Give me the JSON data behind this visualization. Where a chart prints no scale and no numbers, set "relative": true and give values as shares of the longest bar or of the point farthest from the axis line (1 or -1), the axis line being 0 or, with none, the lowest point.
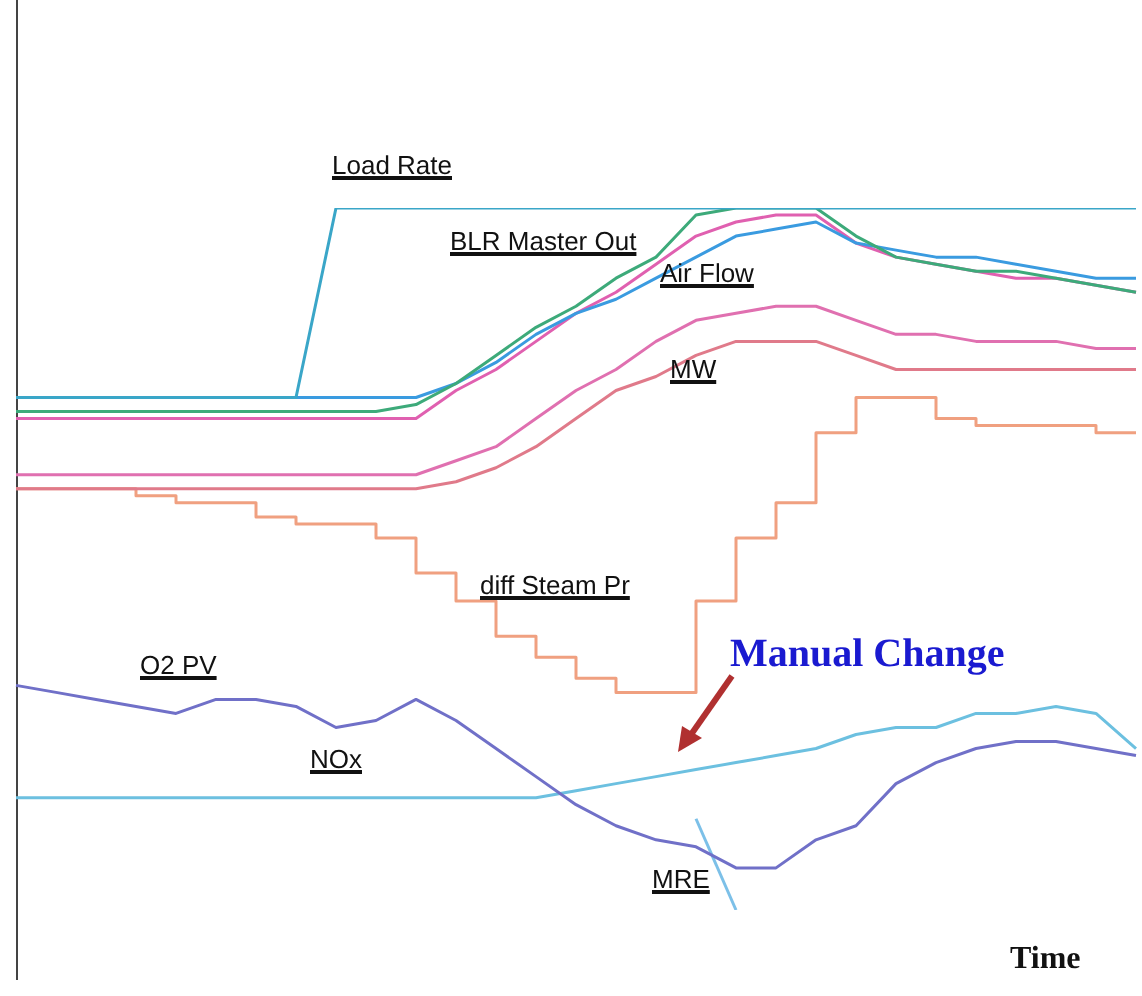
{
  "chart_data": {
    "type": "line",
    "relative": true,
    "xlabel": "Time",
    "annotations": [
      "Manual Change"
    ],
    "categories": [
      null,
      null,
      null,
      null,
      null,
      null,
      null,
      null,
      null,
      null,
      null,
      null,
      null,
      null,
      null,
      null,
      null,
      null,
      null,
      null,
      null,
      null,
      null,
      null,
      null,
      null,
      null,
      null,
      null
    ],
    "series": [
      {
        "name": "Load Rate",
        "color": "#3aa6c8",
        "values": [
          0.73,
          0.73,
          0.73,
          0.73,
          0.73,
          0.73,
          0.73,
          0.73,
          1,
          1,
          1,
          1,
          1,
          1,
          1,
          1,
          1,
          1,
          1,
          1,
          1,
          1,
          1,
          1,
          1,
          1,
          1,
          1,
          1
        ]
      },
      {
        "name": "BLR Master Out",
        "color": "#3daa7a",
        "values": [
          0.71,
          0.71,
          0.71,
          0.71,
          0.71,
          0.71,
          0.71,
          0.71,
          0.71,
          0.71,
          0.72,
          0.75,
          0.79,
          0.83,
          0.86,
          0.9,
          0.93,
          0.99,
          1,
          1,
          1,
          0.96,
          0.93,
          0.92,
          0.91,
          0.91,
          0.9,
          0.89,
          0.88
        ]
      },
      {
        "name": "Air Flow",
        "color": "#3a9be0",
        "values": [
          0.73,
          0.73,
          0.73,
          0.73,
          0.73,
          0.73,
          0.73,
          0.73,
          0.73,
          0.73,
          0.73,
          0.75,
          0.78,
          0.82,
          0.85,
          0.87,
          0.9,
          0.93,
          0.96,
          0.97,
          0.98,
          0.95,
          0.94,
          0.93,
          0.93,
          0.92,
          0.91,
          0.9,
          0.9
        ]
      },
      {
        "color": "#e060b0",
        "values": [
          0.7,
          0.7,
          0.7,
          0.7,
          0.7,
          0.7,
          0.7,
          0.7,
          0.7,
          0.7,
          0.7,
          0.74,
          0.77,
          0.81,
          0.85,
          0.88,
          0.92,
          0.96,
          0.98,
          0.99,
          0.99,
          0.95,
          0.93,
          0.92,
          0.91,
          0.9,
          0.9,
          0.89,
          0.88
        ]
      },
      {
        "name": "MW",
        "color": "#e070b0",
        "values": [
          0.62,
          0.62,
          0.62,
          0.62,
          0.62,
          0.62,
          0.62,
          0.62,
          0.62,
          0.62,
          0.62,
          0.64,
          0.66,
          0.7,
          0.74,
          0.77,
          0.81,
          0.84,
          0.85,
          0.86,
          0.86,
          0.84,
          0.82,
          0.82,
          0.81,
          0.81,
          0.81,
          0.8,
          0.8
        ]
      },
      {
        "color": "#e07a8a",
        "values": [
          0.6,
          0.6,
          0.6,
          0.6,
          0.6,
          0.6,
          0.6,
          0.6,
          0.6,
          0.6,
          0.6,
          0.61,
          0.63,
          0.66,
          0.7,
          0.74,
          0.76,
          0.79,
          0.81,
          0.81,
          0.81,
          0.79,
          0.77,
          0.77,
          0.77,
          0.77,
          0.77,
          0.77,
          0.77
        ]
      },
      {
        "name": "diff Steam Pr",
        "type": "step",
        "color": "#f0a080",
        "values": [
          0.6,
          0.6,
          0.6,
          0.59,
          0.58,
          0.58,
          0.56,
          0.55,
          0.55,
          0.53,
          0.48,
          0.44,
          0.39,
          0.36,
          0.33,
          0.31,
          0.31,
          0.44,
          0.53,
          0.58,
          0.68,
          0.73,
          0.73,
          0.7,
          0.69,
          0.69,
          0.69,
          0.68,
          0.68
        ]
      },
      {
        "name": "O2 PV",
        "color": "#7070c8",
        "values": [
          0.32,
          0.31,
          0.3,
          0.29,
          0.28,
          0.3,
          0.3,
          0.29,
          0.26,
          0.27,
          0.3,
          0.27,
          0.23,
          0.19,
          0.15,
          0.12,
          0.1,
          0.09,
          0.06,
          0.06,
          0.1,
          0.12,
          0.18,
          0.21,
          0.23,
          0.24,
          0.24,
          0.23,
          0.22
        ]
      },
      {
        "name": "NOx",
        "color": "#6cc0e0",
        "values": [
          0.16,
          0.16,
          0.16,
          0.16,
          0.16,
          0.16,
          0.16,
          0.16,
          0.16,
          0.16,
          0.16,
          0.16,
          0.16,
          0.16,
          0.17,
          0.18,
          0.19,
          0.2,
          0.21,
          0.22,
          0.23,
          0.25,
          0.26,
          0.26,
          0.28,
          0.28,
          0.29,
          0.28,
          0.23
        ]
      },
      {
        "name": "MRE",
        "color": "#7cc0e8",
        "values": [
          null,
          null,
          null,
          null,
          null,
          null,
          null,
          null,
          null,
          null,
          null,
          null,
          null,
          null,
          null,
          null,
          null,
          0.13,
          0,
          null,
          null,
          null,
          null,
          null,
          null,
          null,
          null,
          null,
          null
        ]
      }
    ]
  }
}
